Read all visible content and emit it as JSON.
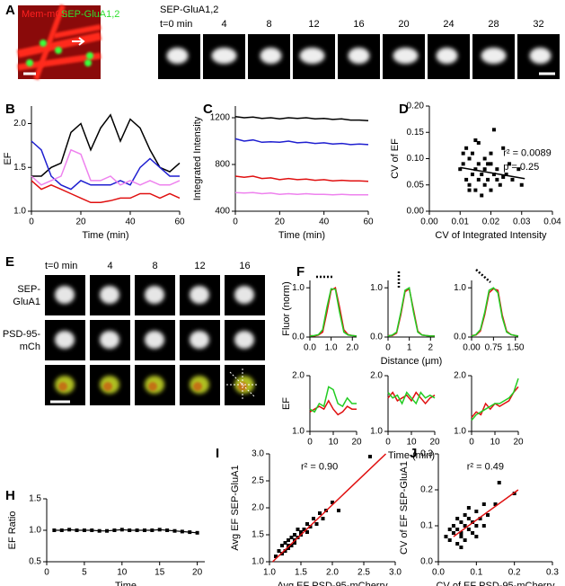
{
  "images": {
    "a": {
      "label": "A",
      "channel_labels": [
        "Mem-mCh",
        "SEP-GluA1,2"
      ],
      "series_title": "SEP-GluA1,2",
      "time_labels": [
        "t=0 min",
        "4",
        "8",
        "12",
        "16",
        "20",
        "24",
        "28",
        "32"
      ]
    },
    "e": {
      "label": "E",
      "time_labels": [
        "t=0 min",
        "4",
        "8",
        "12",
        "16"
      ],
      "row_labels": [
        [
          "SEP-",
          "GluA1"
        ],
        [
          "PSD-95-",
          "mCh"
        ]
      ]
    }
  },
  "chart_data": [
    {
      "type": "line",
      "panel": "B",
      "ylabel": "EF",
      "xlabel": "Time (min)",
      "xlim": [
        0,
        60
      ],
      "xticks": [
        0,
        20,
        40,
        60
      ],
      "ylim": [
        1.0,
        2.2
      ],
      "yticks": [
        {
          "value": 1,
          "label": "1.0"
        },
        1.5,
        {
          "value": 2,
          "label": "2.0"
        }
      ],
      "x": [
        0,
        4,
        8,
        12,
        16,
        20,
        24,
        28,
        32,
        36,
        40,
        44,
        48,
        52,
        56,
        60
      ],
      "series": [
        {
          "color": "#000000",
          "values": [
            1.4,
            1.4,
            1.5,
            1.55,
            1.9,
            2.0,
            1.7,
            1.95,
            2.1,
            1.8,
            2.05,
            1.95,
            1.7,
            1.5,
            1.45,
            1.55
          ]
        },
        {
          "color": "#1f1fd0",
          "values": [
            1.8,
            1.7,
            1.4,
            1.3,
            1.25,
            1.35,
            1.3,
            1.3,
            1.3,
            1.35,
            1.3,
            1.5,
            1.6,
            1.5,
            1.4,
            1.4
          ]
        },
        {
          "color": "#ee82ee",
          "values": [
            1.4,
            1.3,
            1.35,
            1.4,
            1.7,
            1.65,
            1.35,
            1.35,
            1.4,
            1.3,
            1.35,
            1.3,
            1.35,
            1.3,
            1.3,
            1.35
          ]
        },
        {
          "color": "#e01010",
          "values": [
            1.35,
            1.25,
            1.3,
            1.25,
            1.2,
            1.15,
            1.1,
            1.1,
            1.12,
            1.15,
            1.15,
            1.2,
            1.2,
            1.15,
            1.2,
            1.15
          ]
        }
      ]
    },
    {
      "type": "line",
      "panel": "C",
      "ylabel": "Integrated Intensity",
      "xlabel": "Time (min)",
      "xlim": [
        0,
        60
      ],
      "xticks": [
        0,
        20,
        40,
        60
      ],
      "ylim": [
        400,
        1300
      ],
      "yticks": [
        400,
        800,
        1200
      ],
      "x": [
        0,
        4,
        8,
        12,
        16,
        20,
        24,
        28,
        32,
        36,
        40,
        44,
        48,
        52,
        56,
        60
      ],
      "series": [
        {
          "color": "#000000",
          "values": [
            1210,
            1200,
            1205,
            1195,
            1200,
            1190,
            1200,
            1195,
            1200,
            1190,
            1195,
            1185,
            1190,
            1180,
            1180,
            1175
          ]
        },
        {
          "color": "#1f1fd0",
          "values": [
            1020,
            1000,
            1010,
            990,
            995,
            990,
            1000,
            985,
            990,
            980,
            985,
            975,
            980,
            970,
            975,
            970
          ]
        },
        {
          "color": "#e01010",
          "values": [
            700,
            690,
            700,
            680,
            685,
            670,
            680,
            670,
            675,
            665,
            670,
            660,
            665,
            660,
            660,
            655
          ]
        },
        {
          "color": "#ee82ee",
          "values": [
            560,
            555,
            560,
            550,
            555,
            545,
            550,
            545,
            550,
            545,
            545,
            540,
            545,
            540,
            540,
            540
          ]
        }
      ]
    },
    {
      "type": "scatter",
      "panel": "D",
      "ylabel": "CV of EF",
      "xlabel": "CV of Integrated Intensity",
      "color": "#000000",
      "xlim": [
        0,
        0.04
      ],
      "xticks": [
        {
          "value": 0,
          "label": "0.00"
        },
        0.01,
        0.02,
        0.03,
        {
          "value": 0.04,
          "label": "0.04"
        }
      ],
      "ylim": [
        0,
        0.2
      ],
      "yticks": [
        {
          "value": 0,
          "label": "0.00"
        },
        0.05,
        {
          "value": 0.1,
          "label": "0.10"
        },
        0.15,
        {
          "value": 0.2,
          "label": "0.20"
        }
      ],
      "x": [
        0.01,
        0.011,
        0.012,
        0.012,
        0.013,
        0.013,
        0.014,
        0.014,
        0.015,
        0.015,
        0.015,
        0.016,
        0.016,
        0.017,
        0.017,
        0.018,
        0.018,
        0.018,
        0.019,
        0.019,
        0.02,
        0.02,
        0.021,
        0.021,
        0.022,
        0.022,
        0.023,
        0.024,
        0.025,
        0.026,
        0.027,
        0.029,
        0.03,
        0.011,
        0.013,
        0.016,
        0.02,
        0.024
      ],
      "values": [
        0.08,
        0.09,
        0.12,
        0.06,
        0.1,
        0.05,
        0.07,
        0.11,
        0.04,
        0.08,
        0.135,
        0.06,
        0.09,
        0.03,
        0.07,
        0.05,
        0.08,
        0.1,
        0.06,
        0.09,
        0.04,
        0.11,
        0.07,
        0.155,
        0.06,
        0.08,
        0.05,
        0.12,
        0.07,
        0.09,
        0.06,
        0.08,
        0.05,
        0.11,
        0.04,
        0.13,
        0.09,
        0.065
      ],
      "fit_line": {
        "color": "#000000",
        "x": [
          0.01,
          0.031
        ],
        "values": [
          0.083,
          0.062
        ]
      },
      "annotations": [
        "r² = 0.0089",
        "p = 0.25"
      ]
    },
    {
      "type": "line",
      "panel": "F",
      "ylabel": "Fluor (norm)",
      "xlim": [
        0,
        2.2
      ],
      "xticks": [
        {
          "value": 0,
          "label": "0.0"
        },
        {
          "value": 1,
          "label": "1.0"
        },
        {
          "value": 2,
          "label": "2.0"
        }
      ],
      "ylim": [
        0,
        1.15
      ],
      "yticks": [
        {
          "value": 0,
          "label": "0.0"
        },
        {
          "value": 1,
          "label": "1.0"
        }
      ],
      "x": [
        0,
        0.2,
        0.4,
        0.6,
        0.8,
        1.0,
        1.2,
        1.4,
        1.6,
        1.8,
        2.0,
        2.2
      ],
      "series": [
        {
          "color": "#e01010",
          "values": [
            0.03,
            0.02,
            0.04,
            0.1,
            0.5,
            0.95,
            1.0,
            0.6,
            0.15,
            0.05,
            0.03,
            0.02
          ]
        },
        {
          "color": "#22cc22",
          "values": [
            0.02,
            0.03,
            0.05,
            0.15,
            0.6,
            0.98,
            0.97,
            0.5,
            0.1,
            0.04,
            0.03,
            0.02
          ]
        }
      ]
    },
    {
      "type": "line",
      "xlabel": "Distance (μm)",
      "xlim": [
        0,
        2.2
      ],
      "xticks": [
        0,
        1,
        2
      ],
      "ylim": [
        0,
        1.15
      ],
      "yticks": [
        {
          "value": 0,
          "label": "0.0"
        },
        {
          "value": 1,
          "label": "1.0"
        }
      ],
      "x": [
        0,
        0.2,
        0.4,
        0.6,
        0.8,
        1.0,
        1.2,
        1.4,
        1.6,
        1.8,
        2.0,
        2.2
      ],
      "series": [
        {
          "color": "#e01010",
          "values": [
            0.03,
            0.03,
            0.08,
            0.45,
            0.92,
            0.98,
            0.55,
            0.12,
            0.04,
            0.03,
            0.02,
            0.02
          ]
        },
        {
          "color": "#22cc22",
          "values": [
            0.02,
            0.04,
            0.1,
            0.5,
            0.95,
            1.0,
            0.5,
            0.1,
            0.04,
            0.03,
            0.02,
            0.02
          ]
        }
      ]
    },
    {
      "type": "line",
      "xlim": [
        0,
        1.6
      ],
      "xticks": [
        {
          "value": 0,
          "label": "0.00"
        },
        0.75,
        {
          "value": 1.5,
          "label": "1.50"
        }
      ],
      "ylim": [
        0,
        1.15
      ],
      "yticks": [
        {
          "value": 0,
          "label": "0.0"
        },
        {
          "value": 1,
          "label": "1.0"
        }
      ],
      "x": [
        0,
        0.15,
        0.3,
        0.45,
        0.6,
        0.75,
        0.9,
        1.05,
        1.2,
        1.35,
        1.5,
        1.6
      ],
      "series": [
        {
          "color": "#e01010",
          "values": [
            0.03,
            0.04,
            0.12,
            0.45,
            0.9,
            0.98,
            0.95,
            0.45,
            0.12,
            0.05,
            0.03,
            0.02
          ]
        },
        {
          "color": "#22cc22",
          "values": [
            0.02,
            0.05,
            0.15,
            0.5,
            0.95,
            1.0,
            0.9,
            0.4,
            0.1,
            0.05,
            0.03,
            0.02
          ]
        }
      ]
    },
    {
      "type": "line",
      "ylabel": "EF",
      "xlim": [
        0,
        20
      ],
      "xticks": [
        0,
        10,
        20
      ],
      "ylim": [
        1.0,
        2.0
      ],
      "yticks": [
        {
          "value": 1,
          "label": "1.0"
        },
        {
          "value": 2,
          "label": "2.0"
        }
      ],
      "x": [
        0,
        2,
        4,
        6,
        8,
        10,
        12,
        14,
        16,
        18,
        20
      ],
      "series": [
        {
          "color": "#e01010",
          "values": [
            1.35,
            1.4,
            1.45,
            1.4,
            1.55,
            1.4,
            1.3,
            1.35,
            1.45,
            1.4,
            1.4
          ]
        },
        {
          "color": "#22cc22",
          "values": [
            1.4,
            1.35,
            1.5,
            1.45,
            1.8,
            1.75,
            1.5,
            1.45,
            1.6,
            1.5,
            1.5
          ]
        }
      ]
    },
    {
      "type": "line",
      "xlabel": "Time (min)",
      "xlim": [
        0,
        20
      ],
      "xticks": [
        0,
        10,
        20
      ],
      "ylim": [
        1.0,
        2.0
      ],
      "yticks": [
        {
          "value": 1,
          "label": "1.0"
        },
        {
          "value": 2,
          "label": "2.0"
        }
      ],
      "x": [
        0,
        2,
        4,
        6,
        8,
        10,
        12,
        14,
        16,
        18,
        20
      ],
      "series": [
        {
          "color": "#e01010",
          "values": [
            1.6,
            1.7,
            1.55,
            1.6,
            1.65,
            1.55,
            1.7,
            1.6,
            1.5,
            1.6,
            1.65
          ]
        },
        {
          "color": "#22cc22",
          "values": [
            1.7,
            1.6,
            1.65,
            1.5,
            1.7,
            1.6,
            1.5,
            1.7,
            1.6,
            1.65,
            1.6
          ]
        }
      ]
    },
    {
      "type": "line",
      "xlim": [
        0,
        20
      ],
      "xticks": [
        0,
        10,
        20
      ],
      "ylim": [
        1.0,
        2.0
      ],
      "yticks": [
        {
          "value": 1,
          "label": "1.0"
        },
        {
          "value": 2,
          "label": "2.0"
        }
      ],
      "x": [
        0,
        2,
        4,
        6,
        8,
        10,
        12,
        14,
        16,
        18,
        20
      ],
      "series": [
        {
          "color": "#e01010",
          "values": [
            1.25,
            1.35,
            1.3,
            1.5,
            1.4,
            1.5,
            1.45,
            1.5,
            1.55,
            1.7,
            1.8
          ]
        },
        {
          "color": "#22cc22",
          "values": [
            1.2,
            1.3,
            1.35,
            1.4,
            1.45,
            1.5,
            1.5,
            1.55,
            1.6,
            1.7,
            1.95
          ]
        }
      ]
    },
    {
      "type": "line",
      "panel": "H",
      "ylabel": "EF Ratio",
      "xlabel": "Time",
      "color": "#000000",
      "markers": true,
      "xlim": [
        0,
        21
      ],
      "xticks": [
        0,
        5,
        10,
        15,
        20
      ],
      "ylim": [
        0.5,
        1.5
      ],
      "yticks": [
        0.5,
        {
          "value": 1,
          "label": "1.0"
        },
        1.5
      ],
      "x": [
        1,
        2,
        3,
        4,
        5,
        6,
        7,
        8,
        9,
        10,
        11,
        12,
        13,
        14,
        15,
        16,
        17,
        18,
        19,
        20
      ],
      "values": [
        1.0,
        1.0,
        1.01,
        1.0,
        1.0,
        1.0,
        0.99,
        0.99,
        1.0,
        1.01,
        1.0,
        1.0,
        1.0,
        1.0,
        1.01,
        1.0,
        0.99,
        0.98,
        0.97,
        0.96
      ]
    },
    {
      "type": "scatter",
      "panel": "I",
      "ylabel": "Avg EF SEP-GluA1",
      "xlabel": "Avg EF PSD-95-mCherry",
      "color": "#000000",
      "xlim": [
        1.0,
        3.0
      ],
      "xticks": [
        {
          "value": 1,
          "label": "1.0"
        },
        1.5,
        {
          "value": 2,
          "label": "2.0"
        },
        2.5,
        {
          "value": 3,
          "label": "3.0"
        }
      ],
      "ylim": [
        1.0,
        3.0
      ],
      "yticks": [
        {
          "value": 1,
          "label": "1.0"
        },
        1.5,
        {
          "value": 2,
          "label": "2.0"
        },
        2.5,
        {
          "value": 3,
          "label": "3.0"
        }
      ],
      "x": [
        1.1,
        1.15,
        1.2,
        1.2,
        1.25,
        1.25,
        1.3,
        1.3,
        1.3,
        1.35,
        1.35,
        1.4,
        1.4,
        1.4,
        1.45,
        1.45,
        1.5,
        1.5,
        1.55,
        1.6,
        1.6,
        1.65,
        1.7,
        1.75,
        1.8,
        1.85,
        1.9,
        2.0,
        2.1,
        2.6
      ],
      "values": [
        1.1,
        1.2,
        1.15,
        1.3,
        1.2,
        1.35,
        1.25,
        1.4,
        1.3,
        1.3,
        1.45,
        1.35,
        1.5,
        1.4,
        1.45,
        1.6,
        1.5,
        1.55,
        1.6,
        1.7,
        1.55,
        1.65,
        1.8,
        1.7,
        1.9,
        1.8,
        1.95,
        2.1,
        1.95,
        2.95
      ],
      "fit_line": {
        "color": "#e01010",
        "x": [
          1.05,
          2.85
        ],
        "values": [
          1.0,
          3.0
        ]
      },
      "annotations": [
        "r² = 0.90"
      ]
    },
    {
      "type": "scatter",
      "panel": "J",
      "ylabel": "CV of EF SEP-GluA1",
      "xlabel": "CV of EF PSD-95-mCherry",
      "color": "#000000",
      "xlim": [
        0,
        0.3
      ],
      "xticks": [
        {
          "value": 0,
          "label": "0.0"
        },
        0.1,
        0.2,
        0.3
      ],
      "ylim": [
        0,
        0.3
      ],
      "yticks": [
        {
          "value": 0,
          "label": "0.0"
        },
        0.1,
        0.2,
        0.3
      ],
      "x": [
        0.02,
        0.03,
        0.03,
        0.04,
        0.04,
        0.05,
        0.05,
        0.05,
        0.06,
        0.06,
        0.06,
        0.07,
        0.07,
        0.07,
        0.08,
        0.08,
        0.08,
        0.09,
        0.09,
        0.1,
        0.1,
        0.1,
        0.11,
        0.12,
        0.12,
        0.13,
        0.15,
        0.16,
        0.2,
        0.06
      ],
      "values": [
        0.07,
        0.06,
        0.09,
        0.08,
        0.1,
        0.05,
        0.09,
        0.12,
        0.07,
        0.11,
        0.08,
        0.06,
        0.1,
        0.13,
        0.09,
        0.12,
        0.15,
        0.08,
        0.11,
        0.1,
        0.14,
        0.07,
        0.12,
        0.1,
        0.16,
        0.13,
        0.16,
        0.22,
        0.19,
        0.04
      ],
      "fit_line": {
        "color": "#e01010",
        "x": [
          0.04,
          0.21
        ],
        "values": [
          0.07,
          0.2
        ]
      },
      "annotations": [
        "r² = 0.49"
      ]
    }
  ]
}
